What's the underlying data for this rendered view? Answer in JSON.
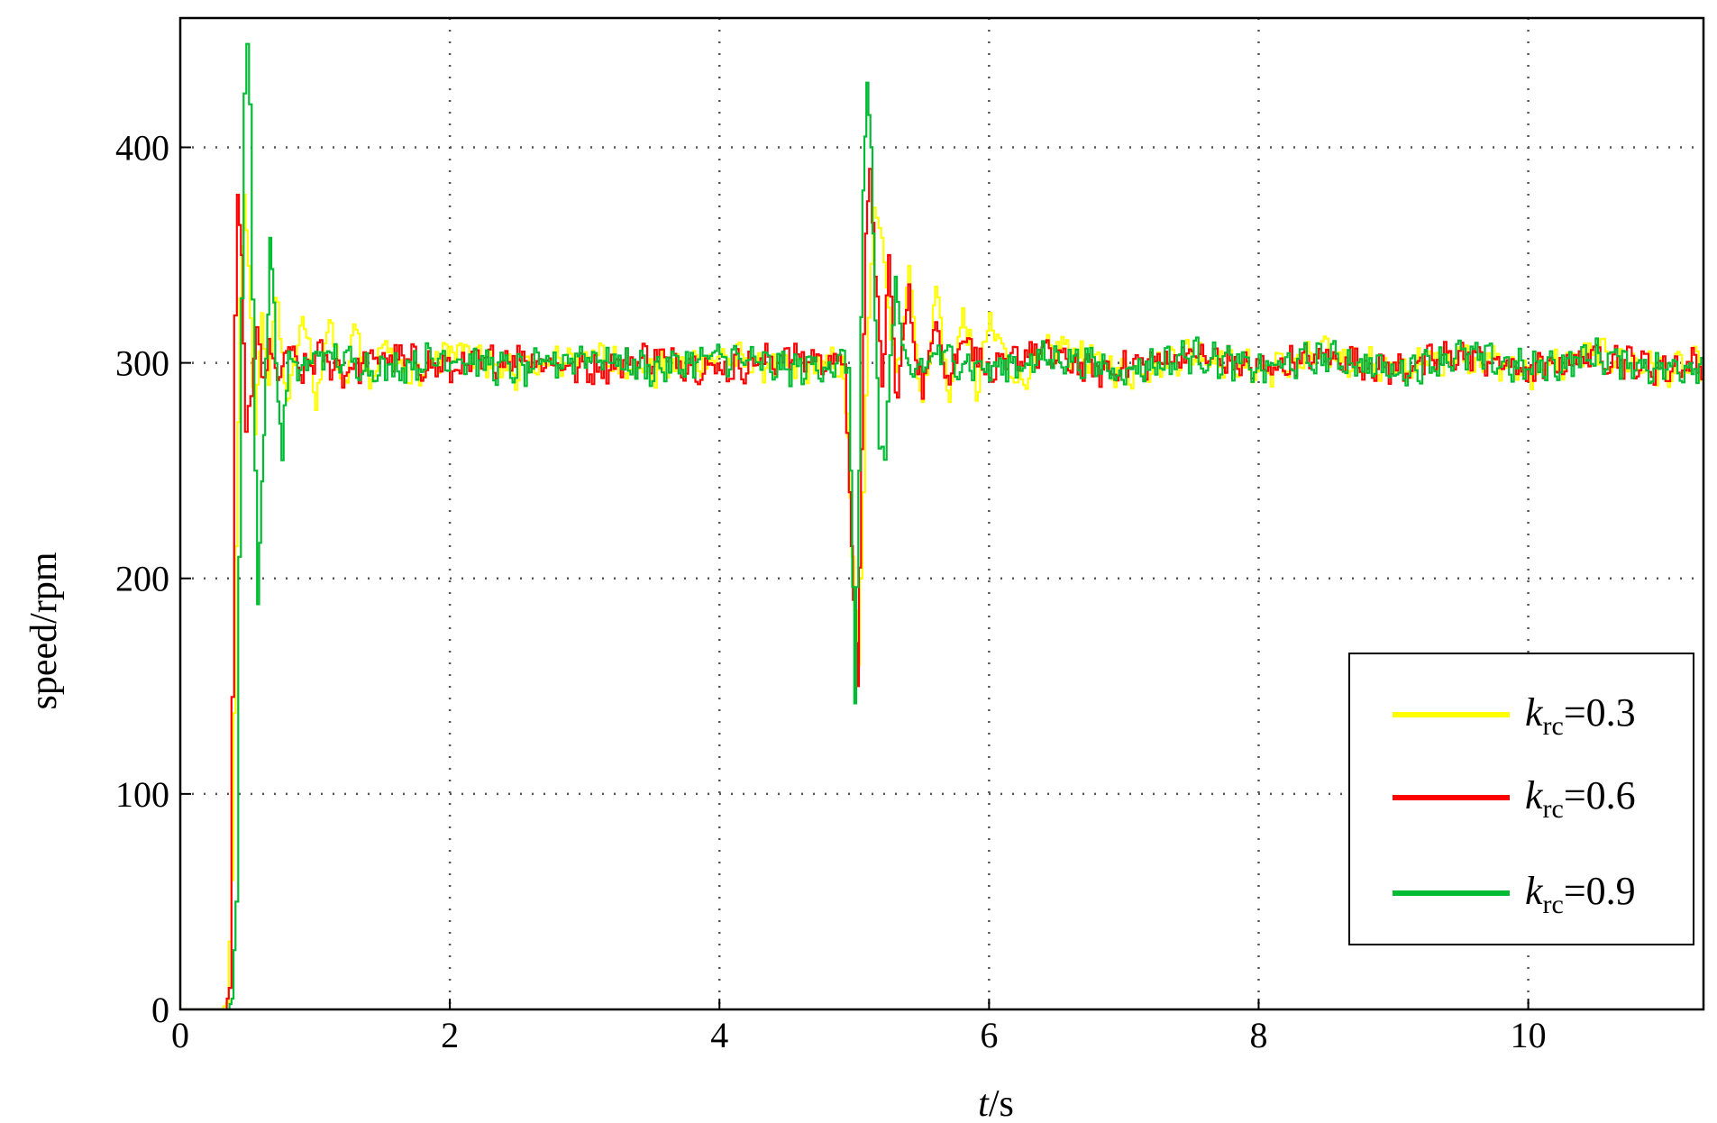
{
  "chart_data": {
    "type": "line",
    "title": "",
    "xlabel_var": "t",
    "xlabel_unit": "/s",
    "ylabel": "speed/rpm",
    "xlim": [
      0,
      11.3
    ],
    "ylim": [
      0,
      460
    ],
    "xticks": [
      0,
      2,
      4,
      6,
      8,
      10
    ],
    "yticks": [
      0,
      100,
      200,
      300,
      400
    ],
    "grid": true,
    "legend_position": "bottom-right",
    "series": [
      {
        "legend_var": "k",
        "legend_sub": "rc",
        "legend_value": "=0.3",
        "color": "#ffff00",
        "steady_value": 300,
        "points": [
          [
            0,
            0
          ],
          [
            0.3,
            0
          ],
          [
            0.34,
            3
          ],
          [
            0.38,
            60
          ],
          [
            0.41,
            215
          ],
          [
            0.44,
            330
          ],
          [
            0.47,
            378
          ],
          [
            0.5,
            345
          ],
          [
            0.55,
            268
          ],
          [
            0.6,
            318
          ],
          [
            0.65,
            290
          ],
          [
            0.7,
            330
          ],
          [
            0.8,
            280
          ],
          [
            0.9,
            325
          ],
          [
            1.0,
            282
          ],
          [
            1.1,
            322
          ],
          [
            1.2,
            285
          ],
          [
            1.3,
            318
          ],
          [
            1.4,
            288
          ],
          [
            1.5,
            312
          ],
          [
            1.7,
            292
          ],
          [
            2.0,
            306
          ],
          [
            2.5,
            296
          ],
          [
            3.0,
            304
          ],
          [
            3.5,
            296
          ],
          [
            4.0,
            303
          ],
          [
            4.5,
            297
          ],
          [
            4.9,
            300
          ],
          [
            4.95,
            265
          ],
          [
            4.98,
            210
          ],
          [
            5.02,
            160
          ],
          [
            5.06,
            240
          ],
          [
            5.1,
            320
          ],
          [
            5.14,
            372
          ],
          [
            5.2,
            358
          ],
          [
            5.3,
            290
          ],
          [
            5.4,
            345
          ],
          [
            5.5,
            278
          ],
          [
            5.6,
            335
          ],
          [
            5.7,
            282
          ],
          [
            5.8,
            325
          ],
          [
            5.9,
            288
          ],
          [
            6.0,
            318
          ],
          [
            6.2,
            292
          ],
          [
            6.5,
            308
          ],
          [
            7.0,
            295
          ],
          [
            7.5,
            305
          ],
          [
            8.0,
            296
          ],
          [
            8.5,
            304
          ],
          [
            9.0,
            296
          ],
          [
            9.5,
            304
          ],
          [
            10.0,
            296
          ],
          [
            10.5,
            304
          ],
          [
            11.0,
            296
          ],
          [
            11.3,
            300
          ]
        ]
      },
      {
        "legend_var": "k",
        "legend_sub": "rc",
        "legend_value": "=0.6",
        "color": "#ff0000",
        "steady_value": 300,
        "points": [
          [
            0,
            0
          ],
          [
            0.33,
            0
          ],
          [
            0.36,
            10
          ],
          [
            0.38,
            145
          ],
          [
            0.4,
            322
          ],
          [
            0.42,
            378
          ],
          [
            0.45,
            350
          ],
          [
            0.48,
            268
          ],
          [
            0.52,
            292
          ],
          [
            0.56,
            312
          ],
          [
            0.6,
            290
          ],
          [
            0.65,
            308
          ],
          [
            0.7,
            292
          ],
          [
            0.8,
            306
          ],
          [
            0.9,
            294
          ],
          [
            1.0,
            304
          ],
          [
            1.2,
            296
          ],
          [
            1.5,
            303
          ],
          [
            2.0,
            297
          ],
          [
            2.5,
            303
          ],
          [
            3.0,
            297
          ],
          [
            3.5,
            303
          ],
          [
            4.0,
            297
          ],
          [
            4.5,
            303
          ],
          [
            4.92,
            300
          ],
          [
            4.96,
            240
          ],
          [
            4.99,
            190
          ],
          [
            5.02,
            150
          ],
          [
            5.05,
            260
          ],
          [
            5.08,
            360
          ],
          [
            5.11,
            390
          ],
          [
            5.15,
            340
          ],
          [
            5.2,
            290
          ],
          [
            5.25,
            350
          ],
          [
            5.3,
            285
          ],
          [
            5.4,
            330
          ],
          [
            5.5,
            285
          ],
          [
            5.6,
            322
          ],
          [
            5.7,
            290
          ],
          [
            5.8,
            315
          ],
          [
            6.0,
            294
          ],
          [
            6.3,
            306
          ],
          [
            6.8,
            296
          ],
          [
            7.5,
            304
          ],
          [
            8.0,
            297
          ],
          [
            8.5,
            303
          ],
          [
            9.0,
            297
          ],
          [
            9.5,
            304
          ],
          [
            10.0,
            296
          ],
          [
            10.5,
            304
          ],
          [
            11.0,
            297
          ],
          [
            11.3,
            300
          ]
        ]
      },
      {
        "legend_var": "k",
        "legend_sub": "rc",
        "legend_value": "=0.9",
        "color": "#00bb33",
        "steady_value": 300,
        "points": [
          [
            0,
            0
          ],
          [
            0.35,
            0
          ],
          [
            0.38,
            5
          ],
          [
            0.41,
            50
          ],
          [
            0.43,
            210
          ],
          [
            0.45,
            330
          ],
          [
            0.47,
            425
          ],
          [
            0.49,
            448
          ],
          [
            0.51,
            420
          ],
          [
            0.53,
            330
          ],
          [
            0.55,
            250
          ],
          [
            0.57,
            188
          ],
          [
            0.6,
            245
          ],
          [
            0.63,
            300
          ],
          [
            0.66,
            358
          ],
          [
            0.69,
            320
          ],
          [
            0.72,
            285
          ],
          [
            0.75,
            262
          ],
          [
            0.8,
            300
          ],
          [
            0.9,
            296
          ],
          [
            1.0,
            304
          ],
          [
            1.5,
            297
          ],
          [
            2.0,
            303
          ],
          [
            2.5,
            296
          ],
          [
            3.0,
            304
          ],
          [
            3.5,
            297
          ],
          [
            4.0,
            303
          ],
          [
            4.5,
            297
          ],
          [
            4.95,
            300
          ],
          [
            4.97,
            250
          ],
          [
            5.0,
            142
          ],
          [
            5.03,
            250
          ],
          [
            5.06,
            380
          ],
          [
            5.09,
            430
          ],
          [
            5.12,
            400
          ],
          [
            5.15,
            320
          ],
          [
            5.18,
            268
          ],
          [
            5.22,
            255
          ],
          [
            5.26,
            300
          ],
          [
            5.3,
            340
          ],
          [
            5.35,
            300
          ],
          [
            5.45,
            296
          ],
          [
            5.6,
            304
          ],
          [
            6.0,
            297
          ],
          [
            6.5,
            303
          ],
          [
            7.0,
            296
          ],
          [
            7.5,
            304
          ],
          [
            8.0,
            297
          ],
          [
            8.5,
            303
          ],
          [
            9.0,
            296
          ],
          [
            9.5,
            304
          ],
          [
            10.0,
            297
          ],
          [
            10.5,
            303
          ],
          [
            11.0,
            297
          ],
          [
            11.3,
            300
          ]
        ]
      }
    ]
  }
}
